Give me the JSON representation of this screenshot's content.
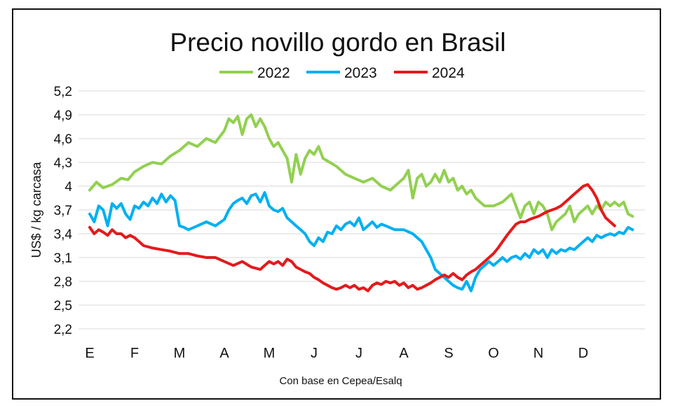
{
  "chart_data": {
    "type": "line",
    "title": "Precio novillo gordo en Brasil",
    "ylabel": "US$ / kg carcasa",
    "xlabel": "Con base en Cepea/Esalq",
    "ylim": [
      2.2,
      5.2
    ],
    "yticks": [
      {
        "value": 2.2,
        "label": "2,2"
      },
      {
        "value": 2.5,
        "label": "2,5"
      },
      {
        "value": 2.8,
        "label": "2,8"
      },
      {
        "value": 3.1,
        "label": "3,1"
      },
      {
        "value": 3.4,
        "label": "3,4"
      },
      {
        "value": 3.7,
        "label": "3,7"
      },
      {
        "value": 4.0,
        "label": "4"
      },
      {
        "value": 4.3,
        "label": "4,3"
      },
      {
        "value": 4.6,
        "label": "4,6"
      },
      {
        "value": 4.9,
        "label": "4,9"
      },
      {
        "value": 5.2,
        "label": "5,2"
      }
    ],
    "grid": true,
    "legend_position": "top",
    "months": [
      "E",
      "F",
      "M",
      "A",
      "M",
      "J",
      "J",
      "A",
      "S",
      "O",
      "N",
      "D"
    ],
    "month_positions": [
      0,
      1,
      2,
      3,
      4,
      5,
      6,
      7,
      8,
      9,
      10,
      11
    ],
    "x_range": [
      0,
      12.1
    ],
    "series": [
      {
        "name": "2022",
        "color": "#92d050",
        "x": [
          0,
          0.15,
          0.3,
          0.5,
          0.7,
          0.85,
          1.0,
          1.2,
          1.4,
          1.6,
          1.8,
          2.0,
          2.2,
          2.4,
          2.6,
          2.8,
          3.0,
          3.1,
          3.2,
          3.3,
          3.4,
          3.5,
          3.6,
          3.7,
          3.8,
          3.9,
          4.0,
          4.1,
          4.2,
          4.3,
          4.4,
          4.5,
          4.6,
          4.7,
          4.8,
          4.9,
          5.0,
          5.1,
          5.2,
          5.35,
          5.5,
          5.7,
          5.9,
          6.1,
          6.3,
          6.5,
          6.7,
          6.9,
          7.0,
          7.1,
          7.2,
          7.3,
          7.4,
          7.5,
          7.6,
          7.7,
          7.8,
          7.9,
          8.0,
          8.1,
          8.2,
          8.3,
          8.4,
          8.5,
          8.6,
          8.7,
          8.8,
          9.0,
          9.2,
          9.4,
          9.6,
          9.7,
          9.8,
          9.9,
          10.0,
          10.1,
          10.2,
          10.3,
          10.4,
          10.5,
          10.6,
          10.7,
          10.8,
          10.9,
          11.0,
          11.1,
          11.2,
          11.3,
          11.4,
          11.5,
          11.6,
          11.7,
          11.8,
          11.9,
          12.0,
          12.1
        ],
        "values": [
          3.95,
          4.05,
          3.98,
          4.02,
          4.1,
          4.08,
          4.18,
          4.25,
          4.3,
          4.28,
          4.38,
          4.45,
          4.55,
          4.5,
          4.6,
          4.55,
          4.7,
          4.85,
          4.8,
          4.88,
          4.65,
          4.85,
          4.9,
          4.75,
          4.85,
          4.75,
          4.6,
          4.5,
          4.55,
          4.45,
          4.35,
          4.05,
          4.4,
          4.15,
          4.35,
          4.45,
          4.4,
          4.5,
          4.35,
          4.3,
          4.25,
          4.15,
          4.1,
          4.05,
          4.1,
          4.0,
          3.95,
          4.05,
          4.1,
          4.2,
          3.85,
          4.1,
          4.15,
          4.0,
          4.05,
          4.15,
          4.05,
          4.2,
          4.05,
          4.1,
          3.95,
          4.0,
          3.9,
          3.95,
          3.85,
          3.8,
          3.75,
          3.75,
          3.8,
          3.9,
          3.6,
          3.75,
          3.8,
          3.65,
          3.8,
          3.75,
          3.65,
          3.45,
          3.55,
          3.6,
          3.65,
          3.75,
          3.55,
          3.65,
          3.7,
          3.75,
          3.65,
          3.75,
          3.7,
          3.8,
          3.75,
          3.8,
          3.75,
          3.8,
          3.65,
          3.62
        ]
      },
      {
        "name": "2023",
        "color": "#00b0f0",
        "x": [
          0,
          0.1,
          0.2,
          0.3,
          0.4,
          0.5,
          0.6,
          0.7,
          0.8,
          0.9,
          1.0,
          1.1,
          1.2,
          1.3,
          1.4,
          1.5,
          1.6,
          1.7,
          1.8,
          1.9,
          2.0,
          2.1,
          2.2,
          2.4,
          2.6,
          2.8,
          3.0,
          3.1,
          3.2,
          3.3,
          3.4,
          3.5,
          3.6,
          3.7,
          3.8,
          3.9,
          4.0,
          4.1,
          4.2,
          4.3,
          4.4,
          4.5,
          4.6,
          4.7,
          4.8,
          4.9,
          5.0,
          5.1,
          5.2,
          5.3,
          5.4,
          5.5,
          5.6,
          5.7,
          5.8,
          5.9,
          6.0,
          6.1,
          6.2,
          6.3,
          6.4,
          6.5,
          6.6,
          6.8,
          7.0,
          7.2,
          7.4,
          7.5,
          7.6,
          7.7,
          7.8,
          7.9,
          8.0,
          8.1,
          8.2,
          8.3,
          8.4,
          8.5,
          8.6,
          8.7,
          8.8,
          8.9,
          9.0,
          9.1,
          9.2,
          9.3,
          9.4,
          9.5,
          9.6,
          9.7,
          9.8,
          9.9,
          10.0,
          10.1,
          10.2,
          10.3,
          10.4,
          10.5,
          10.6,
          10.7,
          10.8,
          10.9,
          11.0,
          11.1,
          11.2,
          11.3,
          11.4,
          11.5,
          11.6,
          11.7,
          11.8,
          11.9,
          12.0,
          12.1
        ],
        "values": [
          3.65,
          3.55,
          3.75,
          3.7,
          3.5,
          3.78,
          3.72,
          3.78,
          3.65,
          3.58,
          3.75,
          3.72,
          3.8,
          3.75,
          3.85,
          3.78,
          3.9,
          3.8,
          3.88,
          3.82,
          3.5,
          3.48,
          3.45,
          3.5,
          3.55,
          3.5,
          3.58,
          3.7,
          3.78,
          3.82,
          3.85,
          3.78,
          3.88,
          3.9,
          3.8,
          3.92,
          3.75,
          3.7,
          3.68,
          3.72,
          3.6,
          3.55,
          3.5,
          3.45,
          3.4,
          3.3,
          3.25,
          3.35,
          3.3,
          3.42,
          3.4,
          3.5,
          3.45,
          3.52,
          3.55,
          3.5,
          3.6,
          3.45,
          3.5,
          3.55,
          3.48,
          3.52,
          3.5,
          3.45,
          3.45,
          3.4,
          3.3,
          3.2,
          3.1,
          2.95,
          2.9,
          2.85,
          2.8,
          2.75,
          2.72,
          2.7,
          2.8,
          2.68,
          2.85,
          2.95,
          3.0,
          3.05,
          3.0,
          3.05,
          3.1,
          3.05,
          3.1,
          3.12,
          3.08,
          3.15,
          3.1,
          3.2,
          3.15,
          3.2,
          3.1,
          3.2,
          3.15,
          3.2,
          3.18,
          3.22,
          3.2,
          3.25,
          3.3,
          3.35,
          3.3,
          3.38,
          3.35,
          3.38,
          3.4,
          3.38,
          3.42,
          3.4,
          3.48,
          3.45
        ]
      },
      {
        "name": "2024",
        "color": "#e31a1c",
        "x": [
          0,
          0.1,
          0.2,
          0.3,
          0.4,
          0.5,
          0.6,
          0.7,
          0.8,
          0.9,
          1.0,
          1.1,
          1.2,
          1.4,
          1.6,
          1.8,
          2.0,
          2.2,
          2.4,
          2.6,
          2.8,
          3.0,
          3.2,
          3.4,
          3.6,
          3.8,
          3.9,
          4.0,
          4.1,
          4.2,
          4.3,
          4.4,
          4.5,
          4.6,
          4.7,
          4.8,
          4.9,
          5.0,
          5.1,
          5.2,
          5.3,
          5.4,
          5.5,
          5.6,
          5.7,
          5.8,
          5.9,
          6.0,
          6.1,
          6.2,
          6.3,
          6.4,
          6.5,
          6.6,
          6.7,
          6.8,
          6.9,
          7.0,
          7.1,
          7.2,
          7.3,
          7.4,
          7.5,
          7.6,
          7.7,
          7.8,
          7.9,
          8.0,
          8.1,
          8.2,
          8.3,
          8.4,
          8.5,
          8.6,
          8.7,
          8.8,
          8.9,
          9.0,
          9.1,
          9.2,
          9.3,
          9.4,
          9.5,
          9.6,
          9.7,
          9.8,
          9.9,
          10.0,
          10.1,
          10.2,
          10.3,
          10.4,
          10.5,
          10.6,
          10.7,
          10.8,
          10.9,
          11.0,
          11.1,
          11.2,
          11.3,
          11.4,
          11.5,
          11.6,
          11.7
        ],
        "values": [
          3.48,
          3.4,
          3.45,
          3.42,
          3.38,
          3.45,
          3.4,
          3.4,
          3.35,
          3.38,
          3.35,
          3.3,
          3.25,
          3.22,
          3.2,
          3.18,
          3.15,
          3.15,
          3.12,
          3.1,
          3.1,
          3.05,
          3.0,
          3.05,
          2.98,
          2.95,
          3.0,
          3.05,
          3.02,
          3.05,
          3.0,
          3.08,
          3.05,
          2.98,
          2.95,
          2.92,
          2.9,
          2.85,
          2.82,
          2.78,
          2.75,
          2.72,
          2.7,
          2.72,
          2.75,
          2.72,
          2.75,
          2.7,
          2.72,
          2.68,
          2.75,
          2.78,
          2.76,
          2.8,
          2.78,
          2.8,
          2.75,
          2.78,
          2.72,
          2.75,
          2.7,
          2.72,
          2.75,
          2.78,
          2.82,
          2.85,
          2.88,
          2.85,
          2.9,
          2.85,
          2.82,
          2.88,
          2.92,
          2.95,
          3.0,
          3.05,
          3.1,
          3.15,
          3.22,
          3.3,
          3.38,
          3.45,
          3.52,
          3.55,
          3.55,
          3.58,
          3.6,
          3.62,
          3.65,
          3.68,
          3.7,
          3.72,
          3.75,
          3.8,
          3.85,
          3.9,
          3.95,
          4.0,
          4.02,
          3.95,
          3.85,
          3.7,
          3.6,
          3.55,
          3.5
        ]
      }
    ],
    "source_note": "Con base en Cepea/Esalq"
  }
}
